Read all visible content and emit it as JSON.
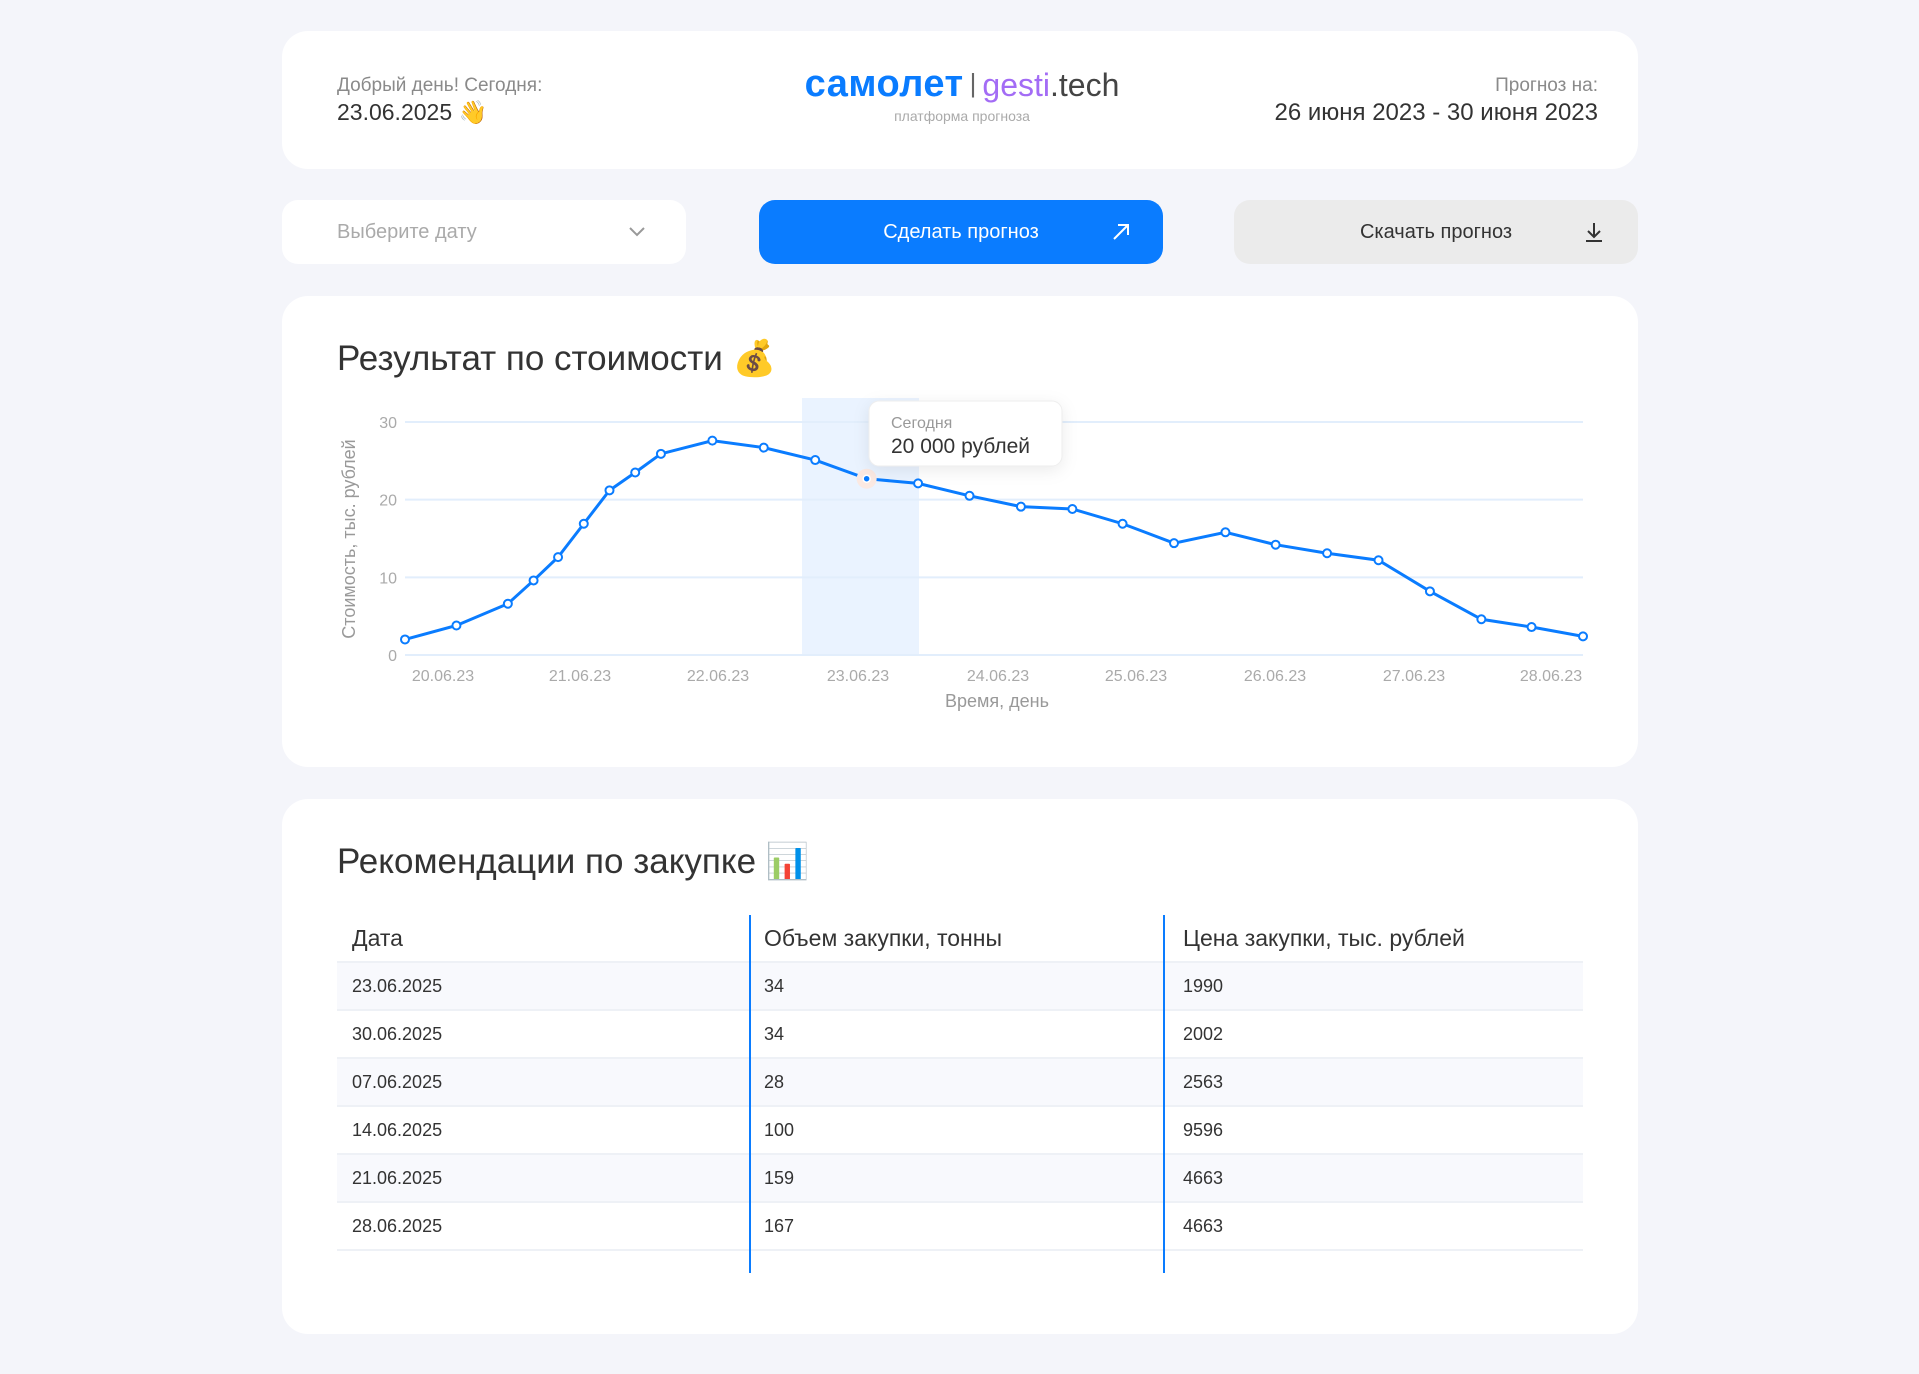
{
  "header": {
    "greeting": "Добрый день! Сегодня:",
    "today": "23.06.2025 👋",
    "logo_main": "самолет",
    "logo_sep": "|",
    "logo_gesti": "gesti",
    "logo_tech": ".tech",
    "logo_sub": "платформа прогноза",
    "forecast_label": "Прогноз на:",
    "forecast_range": "26 июня 2023 - 30 июня 2023"
  },
  "controls": {
    "date_placeholder": "Выберите дату",
    "make_label": "Сделать прогноз",
    "download_label": "Скачать прогноз"
  },
  "colors": {
    "accent": "#0a7cff",
    "brand_purple": "#a36cf5",
    "background": "#f4f5fa"
  },
  "chart_section": {
    "title": "Результат по стоимости 💰"
  },
  "chart_data": {
    "type": "line",
    "ylabel": "Стоимость, тыс. рублей",
    "xlabel": "Время, день",
    "ylim": [
      0,
      30
    ],
    "yticks": [
      "0",
      "10",
      "20",
      "30"
    ],
    "xticks": [
      "20.06.23",
      "21.06.23",
      "22.06.23",
      "23.06.23",
      "24.06.23",
      "25.06.23",
      "26.06.23",
      "27.06.23",
      "28.06.23"
    ],
    "grid": true,
    "series": [
      {
        "color": "#0a7cff",
        "values": [
          2.0,
          3.8,
          6.6,
          9.6,
          12.6,
          16.9,
          21.2,
          23.5,
          25.9,
          27.6,
          26.7,
          25.1,
          22.7,
          22.1,
          20.5,
          19.1,
          18.8,
          16.9,
          14.4,
          15.8,
          14.2,
          13.1,
          12.2,
          8.2,
          4.6,
          3.6,
          2.4
        ]
      }
    ],
    "highlight": "23.06.23",
    "tooltip": {
      "label": "Сегодня",
      "value": "20 000 рублей"
    }
  },
  "table_section": {
    "title": "Рекомендации по закупке 📊",
    "columns": [
      "Дата",
      "Объем закупки, тонны",
      "Цена закупки, тыс. рублей"
    ],
    "rows": [
      [
        "23.06.2025",
        "34",
        "1990"
      ],
      [
        "30.06.2025",
        "34",
        "2002"
      ],
      [
        "07.06.2025",
        "28",
        "2563"
      ],
      [
        "14.06.2025",
        "100",
        "9596"
      ],
      [
        "21.06.2025",
        "159",
        "4663"
      ],
      [
        "28.06.2025",
        "167",
        "4663"
      ]
    ]
  }
}
